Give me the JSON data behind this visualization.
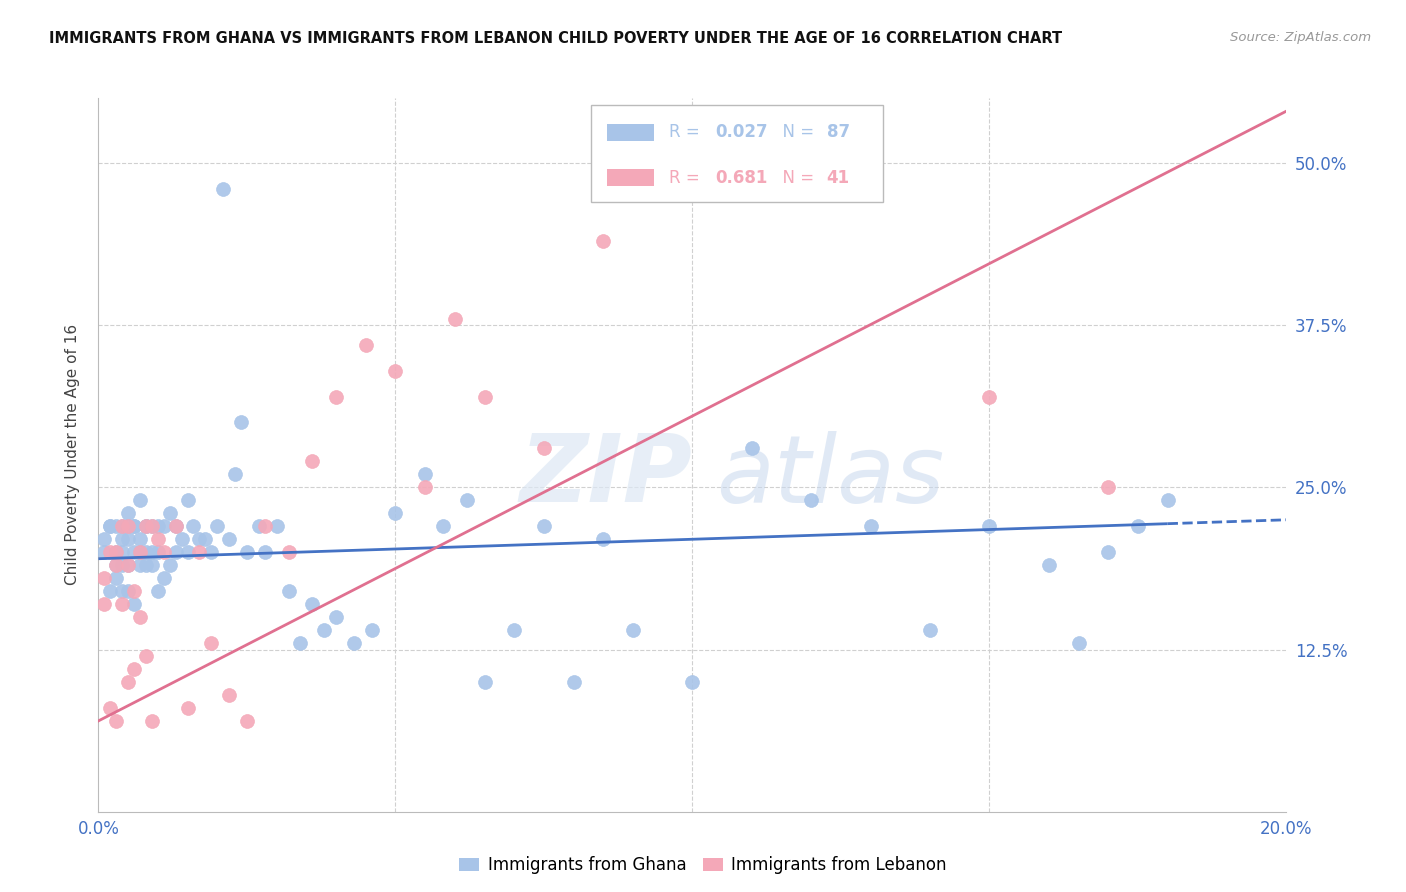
{
  "title": "IMMIGRANTS FROM GHANA VS IMMIGRANTS FROM LEBANON CHILD POVERTY UNDER THE AGE OF 16 CORRELATION CHART",
  "source": "Source: ZipAtlas.com",
  "ylabel": "Child Poverty Under the Age of 16",
  "xlim": [
    0.0,
    0.2
  ],
  "ylim": [
    0.0,
    0.55
  ],
  "yticks": [
    0.0,
    0.125,
    0.25,
    0.375,
    0.5
  ],
  "ytick_labels": [
    "",
    "12.5%",
    "25.0%",
    "37.5%",
    "50.0%"
  ],
  "xticks": [
    0.0,
    0.05,
    0.1,
    0.15,
    0.2
  ],
  "xtick_labels": [
    "0.0%",
    "",
    "",
    "",
    "20.0%"
  ],
  "ghana_color": "#a8c4e8",
  "lebanon_color": "#f4a8b8",
  "ghana_R": 0.027,
  "ghana_N": 87,
  "lebanon_R": 0.681,
  "lebanon_N": 41,
  "line_ghana_color": "#4472c4",
  "line_lebanon_color": "#e07090",
  "axis_label_color": "#4472c4",
  "background_color": "#ffffff",
  "grid_color": "#d0d0d0",
  "ghana_line_intercept": 0.195,
  "ghana_line_slope": 0.15,
  "lebanon_line_intercept": 0.07,
  "lebanon_line_slope": 2.35,
  "ghana_scatter_x": [
    0.001,
    0.001,
    0.002,
    0.002,
    0.002,
    0.003,
    0.003,
    0.003,
    0.003,
    0.004,
    0.004,
    0.004,
    0.004,
    0.004,
    0.005,
    0.005,
    0.005,
    0.005,
    0.005,
    0.006,
    0.006,
    0.006,
    0.006,
    0.007,
    0.007,
    0.007,
    0.007,
    0.008,
    0.008,
    0.008,
    0.008,
    0.009,
    0.009,
    0.009,
    0.01,
    0.01,
    0.01,
    0.011,
    0.011,
    0.012,
    0.012,
    0.013,
    0.013,
    0.014,
    0.015,
    0.015,
    0.016,
    0.017,
    0.018,
    0.019,
    0.02,
    0.021,
    0.022,
    0.023,
    0.024,
    0.025,
    0.027,
    0.028,
    0.03,
    0.032,
    0.034,
    0.036,
    0.038,
    0.04,
    0.043,
    0.046,
    0.05,
    0.055,
    0.058,
    0.062,
    0.065,
    0.07,
    0.075,
    0.08,
    0.085,
    0.09,
    0.1,
    0.11,
    0.12,
    0.13,
    0.14,
    0.15,
    0.16,
    0.165,
    0.17,
    0.175,
    0.18
  ],
  "ghana_scatter_y": [
    0.21,
    0.2,
    0.22,
    0.17,
    0.22,
    0.22,
    0.2,
    0.18,
    0.19,
    0.2,
    0.17,
    0.22,
    0.19,
    0.21,
    0.22,
    0.17,
    0.23,
    0.19,
    0.21,
    0.2,
    0.16,
    0.22,
    0.22,
    0.19,
    0.24,
    0.2,
    0.21,
    0.22,
    0.2,
    0.19,
    0.22,
    0.22,
    0.2,
    0.19,
    0.22,
    0.2,
    0.17,
    0.18,
    0.22,
    0.23,
    0.19,
    0.2,
    0.22,
    0.21,
    0.24,
    0.2,
    0.22,
    0.21,
    0.21,
    0.2,
    0.22,
    0.48,
    0.21,
    0.26,
    0.3,
    0.2,
    0.22,
    0.2,
    0.22,
    0.17,
    0.13,
    0.16,
    0.14,
    0.15,
    0.13,
    0.14,
    0.23,
    0.26,
    0.22,
    0.24,
    0.1,
    0.14,
    0.22,
    0.1,
    0.21,
    0.14,
    0.1,
    0.28,
    0.24,
    0.22,
    0.14,
    0.22,
    0.19,
    0.13,
    0.2,
    0.22,
    0.24
  ],
  "lebanon_scatter_x": [
    0.001,
    0.001,
    0.002,
    0.002,
    0.003,
    0.003,
    0.003,
    0.004,
    0.004,
    0.005,
    0.005,
    0.005,
    0.006,
    0.006,
    0.007,
    0.007,
    0.008,
    0.008,
    0.009,
    0.009,
    0.01,
    0.011,
    0.013,
    0.015,
    0.017,
    0.019,
    0.022,
    0.025,
    0.028,
    0.032,
    0.036,
    0.04,
    0.045,
    0.05,
    0.055,
    0.06,
    0.065,
    0.075,
    0.085,
    0.15,
    0.17
  ],
  "lebanon_scatter_y": [
    0.18,
    0.16,
    0.2,
    0.08,
    0.2,
    0.07,
    0.19,
    0.22,
    0.16,
    0.19,
    0.22,
    0.1,
    0.17,
    0.11,
    0.2,
    0.15,
    0.22,
    0.12,
    0.22,
    0.07,
    0.21,
    0.2,
    0.22,
    0.08,
    0.2,
    0.13,
    0.09,
    0.07,
    0.22,
    0.2,
    0.27,
    0.32,
    0.36,
    0.34,
    0.25,
    0.38,
    0.32,
    0.28,
    0.44,
    0.32,
    0.25
  ]
}
